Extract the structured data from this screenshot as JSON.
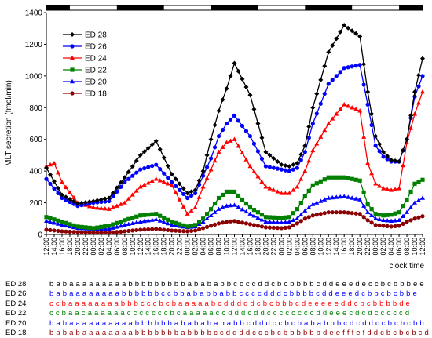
{
  "chart_data": {
    "type": "line",
    "xlabel": "clock time",
    "ylabel": "MLT secretion (fmol/min)",
    "ylim": [
      0,
      1400
    ],
    "yticks": [
      0,
      200,
      400,
      600,
      800,
      1000,
      1200,
      1400
    ],
    "categories": [
      "12:00",
      "14:00",
      "16:00",
      "18:00",
      "20:00",
      "22:00",
      "00:00",
      "02:00",
      "04:00",
      "06:00",
      "08:00",
      "10:00",
      "12:00",
      "14:00",
      "16:00",
      "18:00",
      "20:00",
      "22:00",
      "00:00",
      "02:00",
      "04:00",
      "06:00",
      "08:00",
      "10:00",
      "12:00",
      "14:00",
      "16:00",
      "18:00",
      "20:00",
      "22:00",
      "00:00",
      "02:00",
      "04:00",
      "06:00",
      "08:00",
      "10:00",
      "12:00",
      "14:00",
      "16:00",
      "18:00",
      "20:00",
      "22:00",
      "00:00",
      "02:00",
      "04:00",
      "06:00",
      "08:00",
      "10:00",
      "12:00"
    ],
    "x_hours": [
      0,
      96
    ],
    "grid": false,
    "legend_position": "top-left",
    "light_dark_bar": {
      "dark_periods": [
        [
          0,
          6
        ],
        [
          18,
          30
        ],
        [
          42,
          54
        ],
        [
          66,
          78
        ],
        [
          90,
          96
        ]
      ]
    },
    "series": [
      {
        "name": "ED 28",
        "color": "#000000",
        "marker": "diamond",
        "x": [
          0,
          4,
          8,
          12,
          16,
          20,
          24,
          28,
          32,
          36,
          38,
          40,
          42,
          44,
          46,
          48,
          52,
          56,
          60,
          62,
          64,
          66,
          68,
          72,
          76,
          80,
          82,
          84,
          86,
          88,
          90,
          92,
          94,
          96
        ],
        "values": [
          420,
          250,
          195,
          210,
          230,
          360,
          500,
          590,
          380,
          260,
          280,
          400,
          600,
          780,
          920,
          1080,
          880,
          520,
          440,
          430,
          450,
          560,
          800,
          1150,
          1320,
          1250,
          900,
          620,
          520,
          470,
          460,
          600,
          900,
          1110
        ]
      },
      {
        "name": "ED 26",
        "color": "#0000ff",
        "marker": "circle",
        "x": [
          0,
          4,
          8,
          12,
          16,
          20,
          24,
          28,
          32,
          36,
          38,
          40,
          42,
          44,
          46,
          48,
          52,
          56,
          60,
          62,
          64,
          66,
          68,
          72,
          76,
          80,
          82,
          84,
          86,
          88,
          90,
          92,
          94,
          96
        ],
        "values": [
          350,
          230,
          180,
          200,
          210,
          330,
          410,
          440,
          330,
          230,
          260,
          370,
          480,
          620,
          700,
          750,
          620,
          430,
          410,
          400,
          420,
          520,
          700,
          950,
          1050,
          1070,
          820,
          560,
          490,
          460,
          460,
          600,
          870,
          1000
        ]
      },
      {
        "name": "ED 24",
        "color": "#ff0000",
        "marker": "triangle",
        "x": [
          0,
          2,
          4,
          8,
          12,
          16,
          20,
          24,
          28,
          32,
          36,
          38,
          40,
          42,
          44,
          46,
          48,
          52,
          56,
          60,
          62,
          64,
          66,
          68,
          72,
          76,
          80,
          82,
          84,
          86,
          88,
          90,
          92,
          94,
          96
        ],
        "values": [
          430,
          450,
          330,
          200,
          170,
          160,
          200,
          300,
          350,
          310,
          130,
          170,
          300,
          410,
          520,
          580,
          600,
          430,
          300,
          260,
          260,
          300,
          400,
          530,
          700,
          820,
          780,
          450,
          320,
          290,
          280,
          290,
          580,
          760,
          900
        ]
      },
      {
        "name": "ED 22",
        "color": "#008000",
        "marker": "square",
        "x": [
          0,
          4,
          8,
          12,
          16,
          20,
          24,
          28,
          32,
          36,
          38,
          40,
          42,
          44,
          46,
          48,
          52,
          56,
          60,
          62,
          64,
          66,
          68,
          72,
          76,
          80,
          82,
          84,
          86,
          88,
          90,
          92,
          94,
          96
        ],
        "values": [
          110,
          80,
          50,
          40,
          55,
          90,
          120,
          130,
          80,
          50,
          60,
          100,
          160,
          230,
          270,
          270,
          170,
          110,
          105,
          110,
          160,
          240,
          310,
          360,
          360,
          340,
          190,
          130,
          120,
          125,
          140,
          220,
          320,
          345
        ]
      },
      {
        "name": "ED 20",
        "color": "#0000ff",
        "marker": "triangle",
        "x": [
          0,
          4,
          8,
          12,
          16,
          20,
          24,
          28,
          32,
          36,
          38,
          40,
          42,
          44,
          46,
          48,
          52,
          56,
          60,
          62,
          64,
          66,
          68,
          72,
          76,
          80,
          82,
          84,
          86,
          88,
          90,
          92,
          94,
          96
        ],
        "values": [
          85,
          60,
          40,
          35,
          35,
          60,
          80,
          95,
          60,
          45,
          50,
          80,
          120,
          160,
          180,
          185,
          130,
          80,
          75,
          80,
          100,
          150,
          190,
          230,
          240,
          220,
          140,
          100,
          90,
          85,
          90,
          140,
          200,
          230
        ]
      },
      {
        "name": "ED 18",
        "color": "#8b0000",
        "marker": "circle",
        "x": [
          0,
          4,
          8,
          12,
          16,
          20,
          24,
          28,
          32,
          36,
          38,
          40,
          42,
          44,
          46,
          48,
          52,
          56,
          60,
          62,
          64,
          66,
          68,
          72,
          76,
          80,
          82,
          84,
          86,
          88,
          90,
          92,
          94,
          96
        ],
        "values": [
          30,
          20,
          15,
          12,
          12,
          20,
          30,
          35,
          25,
          20,
          25,
          40,
          55,
          70,
          80,
          85,
          65,
          45,
          40,
          45,
          70,
          100,
          120,
          140,
          140,
          130,
          90,
          60,
          55,
          50,
          55,
          80,
          100,
          115
        ]
      }
    ]
  },
  "letter_rows": [
    {
      "label": "ED 28",
      "color": "#000000",
      "letters": "b a b a a a a a a a a a b b b b b b b b b a b a b a b b c c c c d d c b c b b b b c d d e e e d e c c b c b b b e e"
    },
    {
      "label": "ED 26",
      "color": "#0000ff",
      "letters": "b a b a a a a a a a a b b b b b b c c b b a b a b b a b b c c c c d d d c b b b b c d d e e e d c b b c b c b b e"
    },
    {
      "label": "ED 24",
      "color": "#ff0000",
      "letters": "c c b a a a a a a a a b b b c c c b c b a a a a a b c d d d d d c b c b b b c d e e e e e d d c b c b b b b d e"
    },
    {
      "label": "ED 22",
      "color": "#008000",
      "letters": "c c b a a c a a a a a a c c c c c c c b c a a a a a c c d d d c d d c c c c c c c c d d e e e c d c d c c c c c d"
    },
    {
      "label": "ED 20",
      "color": "#0000ff",
      "letters": "b a b a a a a a a a a a a b b b b b b a b a b a b a b a b b c d d d c c b c b a b a b b b c d c d d c c b c b c b b"
    },
    {
      "label": "ED 18",
      "color": "#8b0000",
      "letters": "b a b a b a a a a a a a a b b b b b b b a b b b b c c d d d d c c c b c b b b b b b d e e f f f e f d d c b c b c b c d"
    }
  ]
}
